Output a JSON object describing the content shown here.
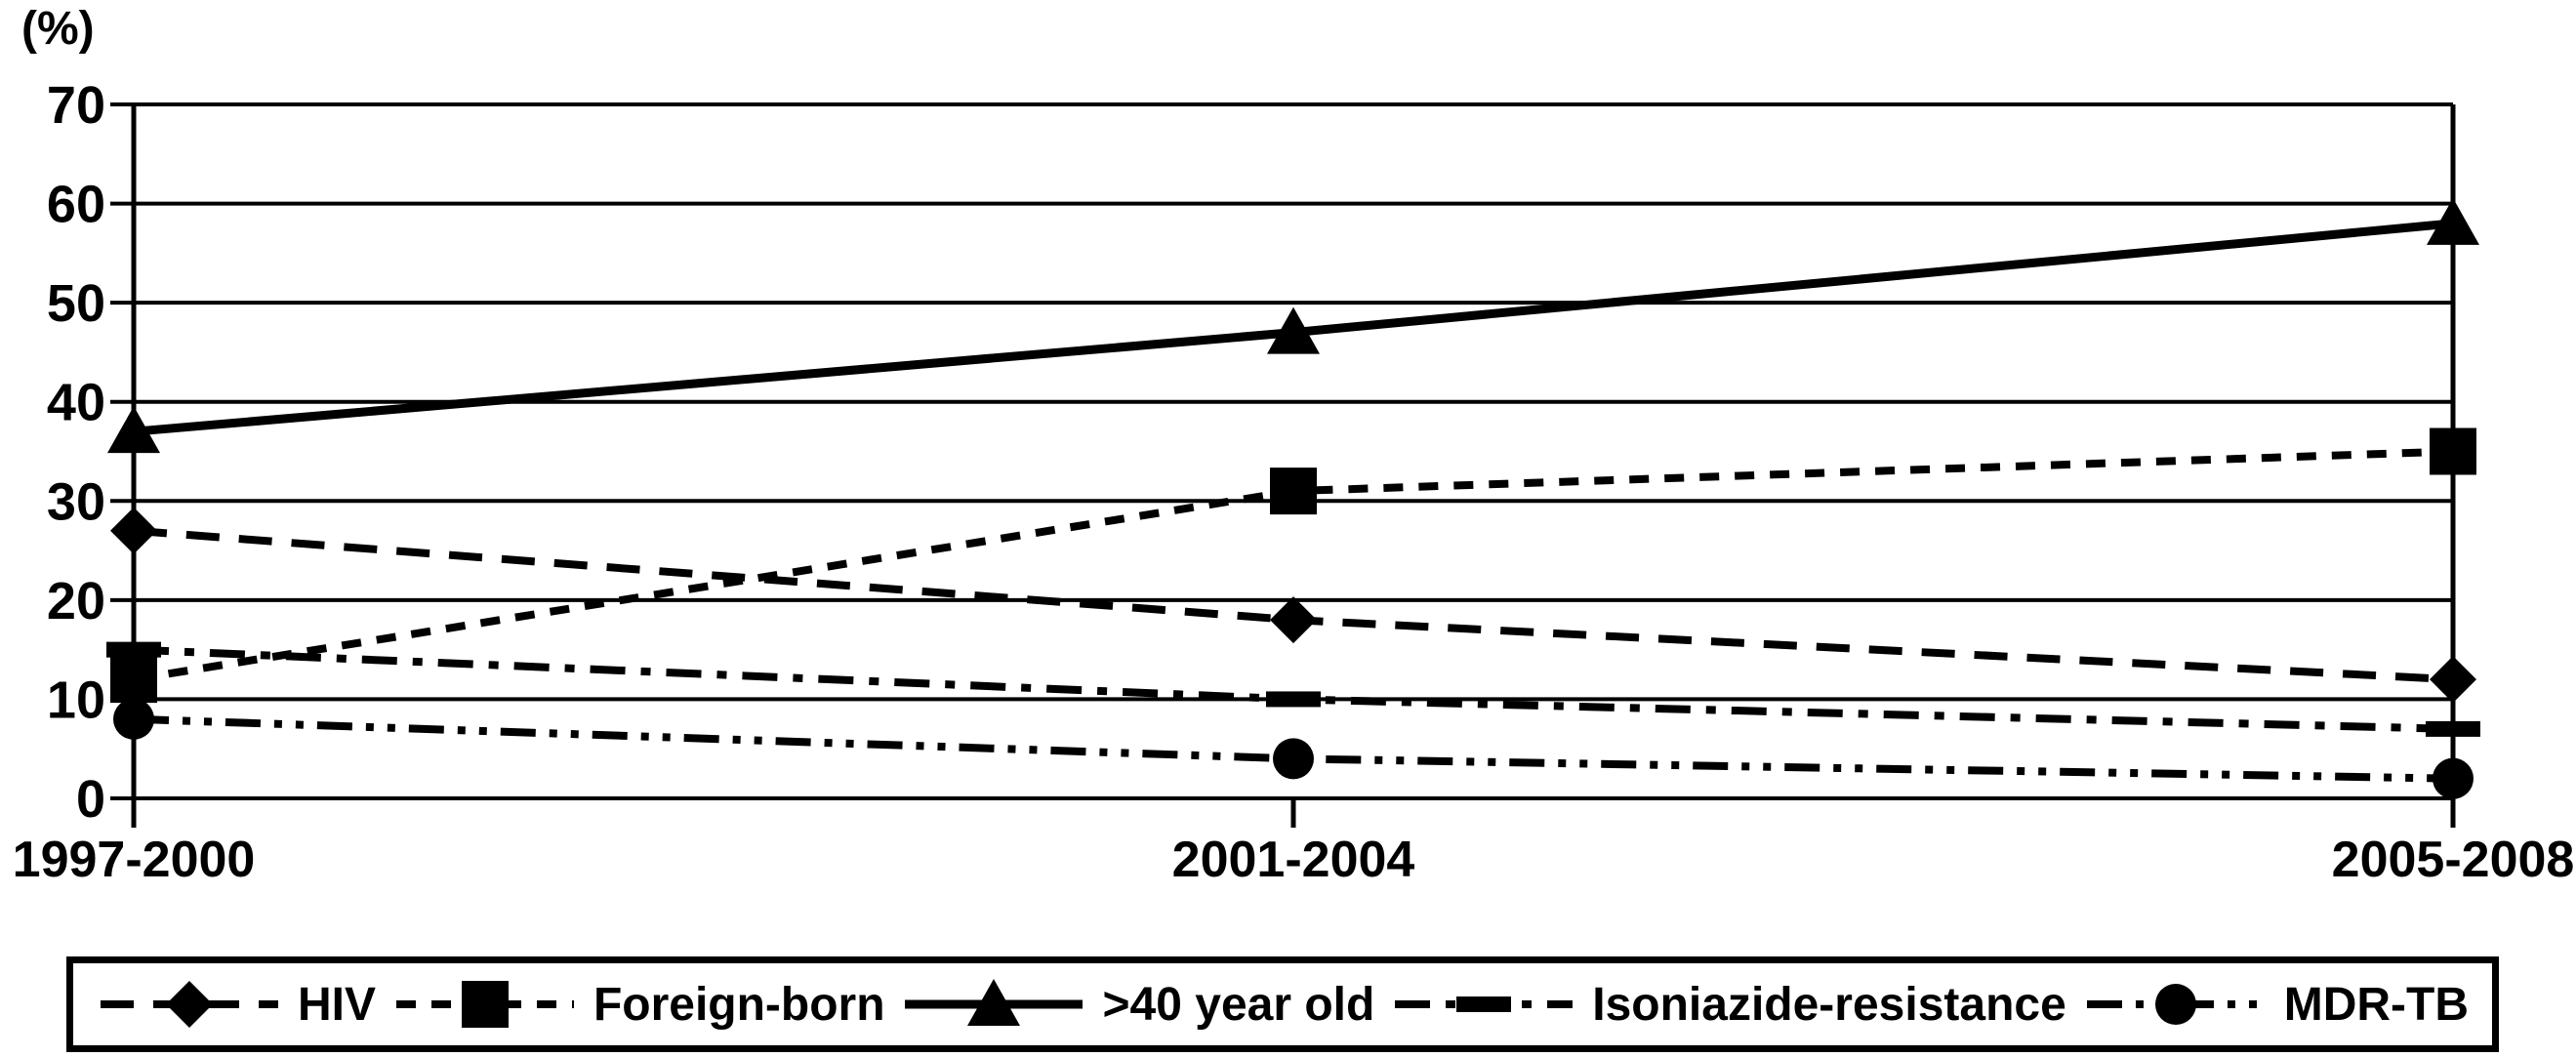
{
  "chart_data": {
    "type": "line",
    "title": "",
    "ylabel": "(%)",
    "xlabel": "",
    "categories": [
      "1997-2000",
      "2001-2004",
      "2005-2008"
    ],
    "y_ticks": [
      0,
      10,
      20,
      30,
      40,
      50,
      60,
      70
    ],
    "ylim": [
      0,
      70
    ],
    "grid": "horizontal-only",
    "legend_position": "bottom-box",
    "series": [
      {
        "name": "HIV",
        "marker": "diamond",
        "line": "dashed",
        "values": [
          27,
          18,
          12
        ]
      },
      {
        "name": "Foreign-born",
        "marker": "square",
        "line": "dashed-short",
        "values": [
          12,
          31,
          35
        ]
      },
      {
        "name": ">40 year old",
        "marker": "triangle",
        "line": "solid",
        "values": [
          37,
          47,
          58
        ]
      },
      {
        "name": "Isoniazide-resistance",
        "marker": "hbar",
        "line": "dash-dot",
        "values": [
          15,
          10,
          7
        ]
      },
      {
        "name": "MDR-TB",
        "marker": "circle",
        "line": "dash-dot-dot",
        "values": [
          8,
          4,
          2
        ]
      }
    ],
    "colors": {
      "foreground": "#000000",
      "background": "#ffffff"
    }
  }
}
